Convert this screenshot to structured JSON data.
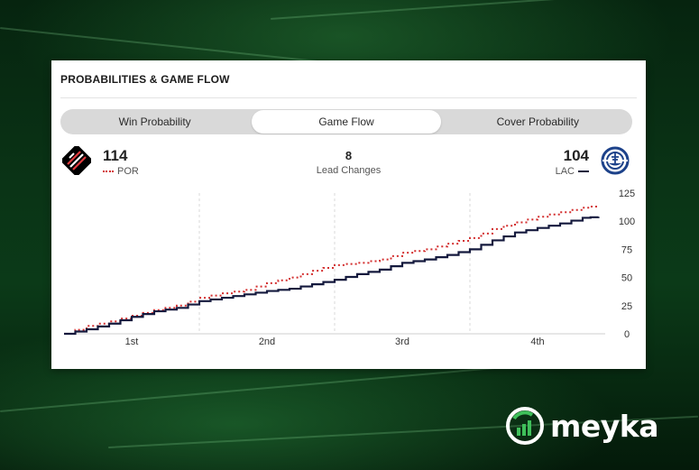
{
  "card": {
    "title": "PROBABILITIES & GAME FLOW",
    "tabs": [
      {
        "label": "Win Probability",
        "active": false
      },
      {
        "label": "Game Flow",
        "active": true
      },
      {
        "label": "Cover Probability",
        "active": false
      }
    ]
  },
  "teams": {
    "home": {
      "abbr": "POR",
      "score": "114",
      "color": "#d32f2f",
      "logo_icon": "trail-blazers-pinwheel-icon"
    },
    "away": {
      "abbr": "LAC",
      "score": "104",
      "color": "#14193d",
      "logo_icon": "clippers-ship-icon"
    }
  },
  "lead_changes": {
    "value": "8",
    "label": "Lead Changes"
  },
  "chart_data": {
    "type": "line",
    "x_unit": "game minutes",
    "xlim": [
      0,
      48
    ],
    "ylim": [
      0,
      125
    ],
    "yticks": [
      0,
      25,
      50,
      75,
      100,
      125
    ],
    "xtick_labels": [
      "1st",
      "2nd",
      "3rd",
      "4th"
    ],
    "grid": "vertical dashed at quarter boundaries",
    "series": [
      {
        "name": "POR",
        "color": "#d32f2f",
        "style": "dotted",
        "x": [
          0,
          2,
          4,
          6,
          8,
          10,
          12,
          14,
          16,
          18,
          20,
          22,
          24,
          26,
          28,
          30,
          32,
          34,
          36,
          38,
          40,
          42,
          44,
          46,
          47.4
        ],
        "y": [
          0,
          7,
          11,
          16,
          21,
          25,
          32,
          36,
          39,
          45,
          50,
          56,
          61,
          63,
          66,
          72,
          75,
          80,
          85,
          93,
          99,
          104,
          108,
          112,
          114
        ]
      },
      {
        "name": "LAC",
        "color": "#14193d",
        "style": "solid",
        "x": [
          0,
          2,
          4,
          6,
          8,
          10,
          12,
          14,
          16,
          18,
          20,
          22,
          24,
          26,
          28,
          30,
          32,
          34,
          36,
          38,
          40,
          42,
          44,
          46,
          47.4
        ],
        "y": [
          0,
          4,
          9,
          15,
          20,
          23,
          29,
          32,
          35,
          38,
          40,
          44,
          48,
          53,
          57,
          63,
          66,
          70,
          75,
          83,
          90,
          94,
          98,
          103,
          104
        ]
      }
    ]
  },
  "watermark": {
    "text": "meyka"
  }
}
